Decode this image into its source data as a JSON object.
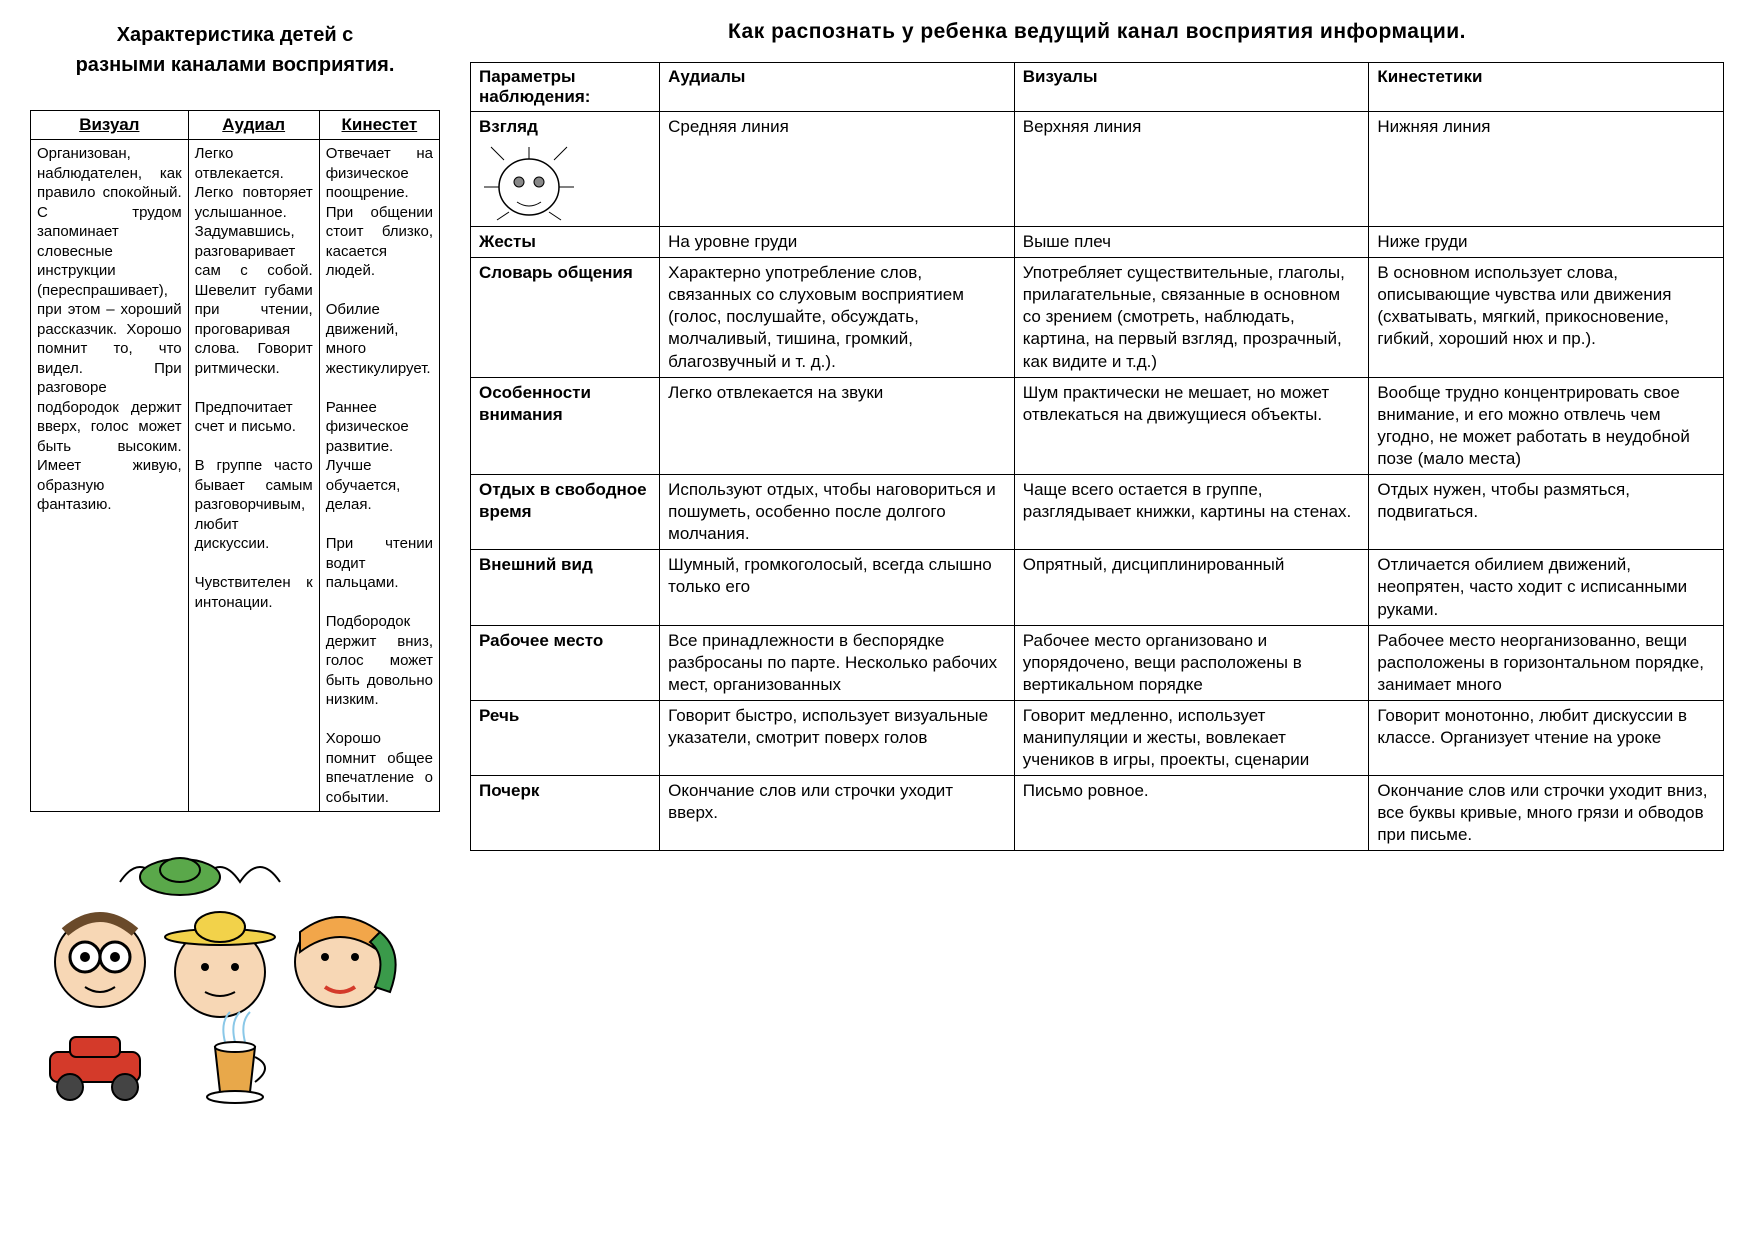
{
  "left": {
    "title_line1": "Характеристика  детей с",
    "title_line2": "разными каналами восприятия.",
    "headers": [
      "Визуал",
      "Аудиал",
      "Кинестет"
    ],
    "cells": [
      "Организован, наблюдателен, как правило спокойный. С трудом запоминает словесные инструкции (переспрашивает), при этом – хороший рассказчик. Хорошо помнит то, что видел. При разговоре подбородок держит вверх, голос может быть высоким. Имеет живую, образную фантазию.",
      "Легко отвлекается. Легко повторяет услышанное. Задумавшись, разговаривает сам с собой. Шевелит губами при чтении, проговаривая слова. Говорит ритмически.\n\nПредпочитает счет и письмо.\n\nВ группе часто бывает самым разговорчивым, любит дискуссии.\n\nЧувствителен к интонации.",
      "Отвечает на физическое поощрение.\nПри общении стоит близко, касается людей.\n\nОбилие движений, много жестикулирует.\n\nРаннее физическое развитие. Лучше обучается, делая.\n\nПри чтении водит пальцами.\n\nПодбородок держит вниз, голос может быть довольно низким.\n\nХорошо помнит общее впечатление о событии."
    ]
  },
  "right": {
    "title": "Как распознать у ребенка ведущий канал восприятия информации.",
    "headers": [
      "Параметры наблюдения:",
      "Аудиалы",
      "Визуалы",
      "Кинестетики"
    ],
    "rows": [
      {
        "label": "Взгляд",
        "a": "Средняя линия",
        "v": "Верхняя линия",
        "k": "Нижняя линия",
        "gaze": true
      },
      {
        "label": "Жесты",
        "a": "На уровне груди",
        "v": "Выше плеч",
        "k": "Ниже груди"
      },
      {
        "label": "Словарь общения",
        "a": "Характерно употребление слов, связанных со слуховым восприятием (голос, послушайте, обсуждать, молчаливый, тишина, громкий, благозвучный и т. д.).",
        "v": "Употребляет существительные, глаголы, прилагательные, связанные в основном со зрением (смотреть, наблюдать, картина, на первый взгляд, прозрачный, как видите и т.д.)",
        "k": "В основном использует слова, описывающие чувства или движения (схватывать, мягкий, прикосновение, гибкий, хороший нюх и пр.)."
      },
      {
        "label": "Особенности внимания",
        "a": "Легко отвлекается на звуки",
        "v": "Шум практически не мешает, но может отвлекаться на движущиеся объекты.",
        "k": "Вообще трудно концентрировать свое внимание, и его можно отвлечь чем угодно, не может работать в неудобной позе (мало места)"
      },
      {
        "label": "Отдых в свободное время",
        "a": "Используют отдых, чтобы наговориться и пошуметь, особенно после долгого молчания.",
        "v": "Чаще всего остается в группе, разглядывает книжки, картины на стенах.",
        "k": "Отдых нужен, чтобы размяться, подвигаться."
      },
      {
        "label": "Внешний вид",
        "a": "Шумный, громкоголосый, всегда слышно только его",
        "v": "Опрятный, дисциплинированный",
        "k": "Отличается обилием движений, неопрятен, часто ходит с исписанными руками."
      },
      {
        "label": "Рабочее место",
        "a": "Все принадлежности в беспорядке разбросаны по парте. Несколько рабочих мест, организованных",
        "v": "Рабочее место организовано и упорядочено, вещи расположены в вертикальном порядке",
        "k": "Рабочее место неорганизованно, вещи расположены в горизонтальном порядке, занимает много"
      },
      {
        "label": "Речь",
        "a": "Говорит быстро, использует визуальные указатели, смотрит поверх голов",
        "v": "Говорит медленно, использует манипуляции и жесты, вовлекает учеников в игры, проекты, сценарии",
        "k": "Говорит монотонно, любит дискуссии в классе. Организует чтение на уроке"
      },
      {
        "label": "Почерк",
        "a": "Окончание слов или строчки уходит вверх.",
        "v": "Письмо ровное.",
        "k": "Окончание слов или строчки уходит вниз, все буквы кривые, много грязи и обводов при письме."
      }
    ]
  },
  "illustration_colors": {
    "car": "#d43a2a",
    "hat_green": "#5aa84a",
    "hair1": "#6a4a2a",
    "hair2": "#f2a64a",
    "phone": "#3a9a4a",
    "cup_body": "#e8a84a",
    "skin": "#f7d7b5"
  }
}
